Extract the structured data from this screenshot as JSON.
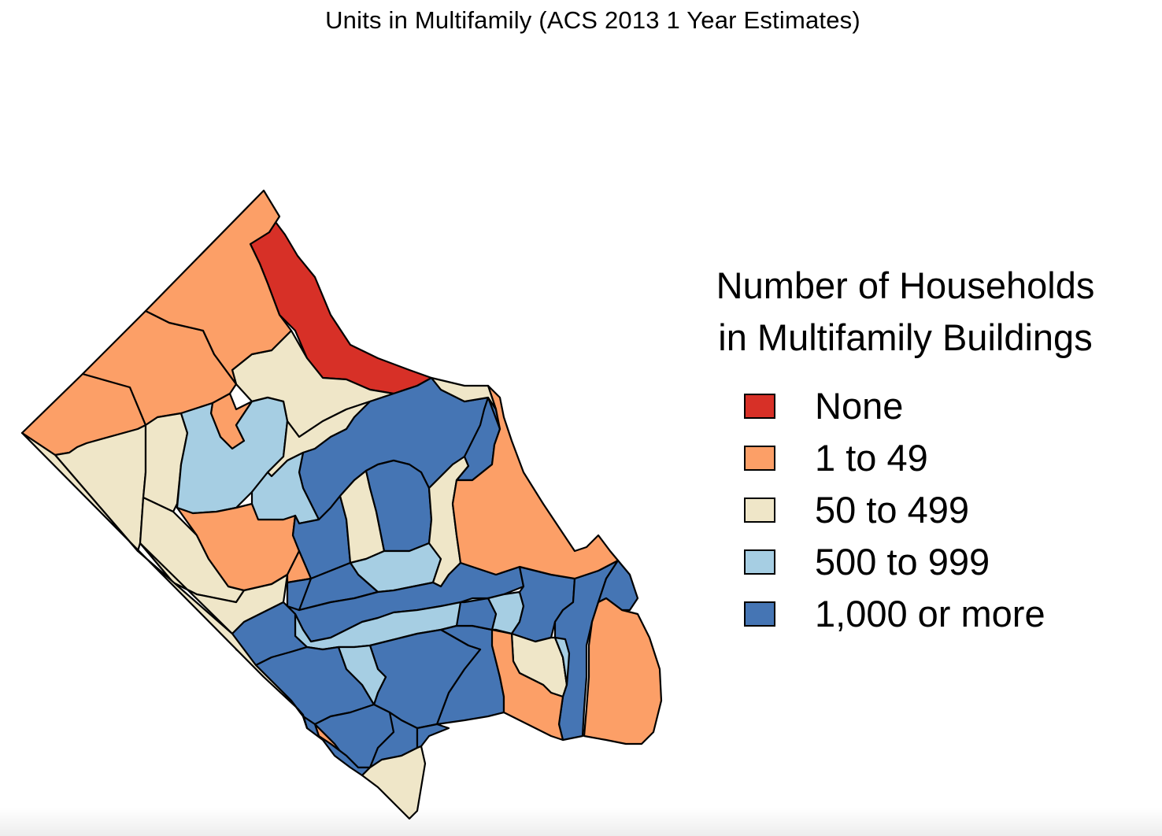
{
  "title": "Units in Multifamily (ACS 2013 1 Year Estimates)",
  "legend": {
    "title_line1": "Number of Households",
    "title_line2": "in Multifamily Buildings",
    "items": [
      {
        "label": "None",
        "color": "#d73027"
      },
      {
        "label": "1 to 49",
        "color": "#fc9f67"
      },
      {
        "label": "50 to 499",
        "color": "#efe6c8"
      },
      {
        "label": "500 to 999",
        "color": "#a6cee3"
      },
      {
        "label": "1,000 or more",
        "color": "#4575b4"
      }
    ]
  },
  "map_regions": [
    {
      "category": 1
    },
    {
      "category": 1
    },
    {
      "category": 0
    },
    {
      "category": 2
    },
    {
      "category": 1
    },
    {
      "category": 1
    },
    {
      "category": 2
    },
    {
      "category": 2
    },
    {
      "category": 3
    },
    {
      "category": 2
    },
    {
      "category": 1
    },
    {
      "category": 2
    },
    {
      "category": 2
    },
    {
      "category": 4
    },
    {
      "category": 3
    },
    {
      "category": 4
    },
    {
      "category": 2
    },
    {
      "category": 4
    },
    {
      "category": 3
    },
    {
      "category": 4
    },
    {
      "category": 2
    },
    {
      "category": 4
    },
    {
      "category": 3
    },
    {
      "category": 4
    },
    {
      "category": 3
    },
    {
      "category": 4
    },
    {
      "category": 2
    },
    {
      "category": 4
    },
    {
      "category": 3
    },
    {
      "category": 4
    },
    {
      "category": 4
    },
    {
      "category": 1
    },
    {
      "category": 4
    },
    {
      "category": 3
    },
    {
      "category": 4
    },
    {
      "category": 4
    },
    {
      "category": 1
    },
    {
      "category": 4
    },
    {
      "category": 4
    },
    {
      "category": 2
    },
    {
      "category": 2
    },
    {
      "category": 3
    },
    {
      "category": 4
    },
    {
      "category": 1
    },
    {
      "category": 4
    },
    {
      "category": 1
    },
    {
      "category": 1
    },
    {
      "category": 4
    },
    {
      "category": 2
    },
    {
      "category": 4
    }
  ]
}
